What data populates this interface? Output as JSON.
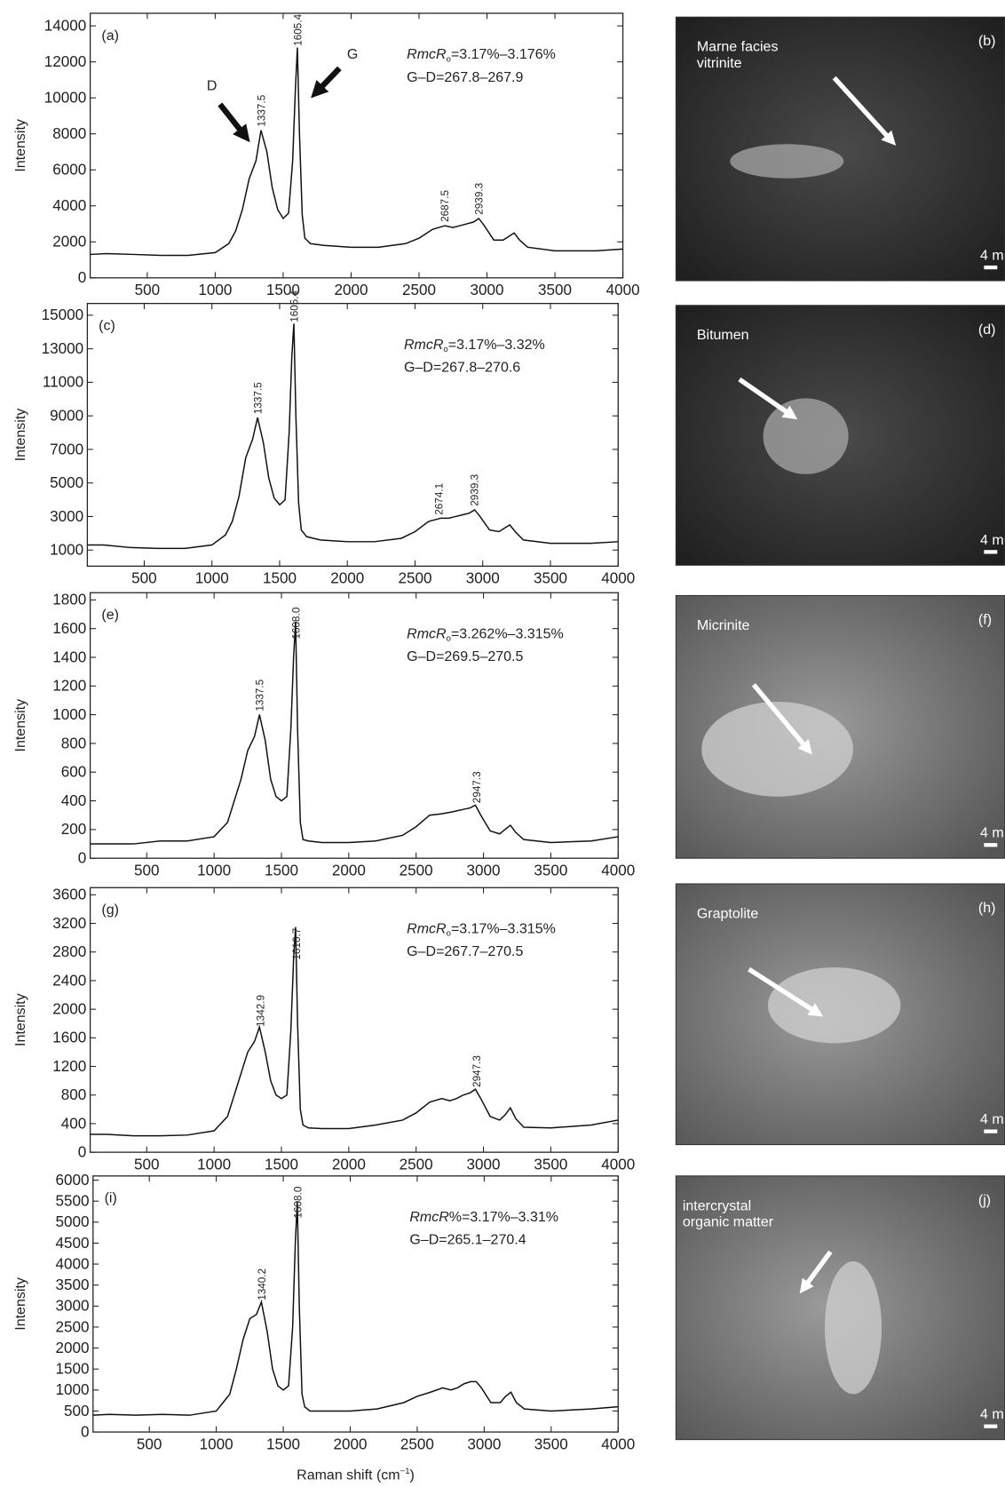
{
  "chart_data": [
    {
      "type": "line",
      "panel": "(a)",
      "ylabel": "Intensity",
      "color": "#111",
      "rmc": [
        "RmcR",
        "o",
        "=3.17%–3.176%"
      ],
      "gd": "G–D=267.8–267.9",
      "arrows": [
        "D",
        "G"
      ],
      "xlim": [
        80,
        4000
      ],
      "xticks": [
        500,
        1000,
        1500,
        2000,
        2500,
        3000,
        3500,
        4000
      ],
      "ylim": [
        0,
        14700
      ],
      "yticks": [
        0,
        2000,
        4000,
        6000,
        8000,
        10000,
        12000,
        14000
      ],
      "peaks": [
        1337.5,
        1605.4,
        2687.5,
        2939.3
      ],
      "x": [
        80,
        200,
        400,
        600,
        800,
        1000,
        1100,
        1150,
        1200,
        1250,
        1300,
        1337,
        1380,
        1420,
        1460,
        1500,
        1540,
        1570,
        1590,
        1605,
        1620,
        1640,
        1660,
        1700,
        1800,
        2000,
        2200,
        2400,
        2500,
        2600,
        2690,
        2750,
        2800,
        2850,
        2900,
        2940,
        2980,
        3050,
        3120,
        3160,
        3200,
        3240,
        3300,
        3500,
        3800,
        4000
      ],
      "values": [
        1300,
        1350,
        1300,
        1250,
        1250,
        1400,
        1900,
        2600,
        3800,
        5500,
        6500,
        8200,
        7000,
        5000,
        3800,
        3300,
        3600,
        6500,
        10500,
        12800,
        8000,
        3500,
        2200,
        1900,
        1800,
        1700,
        1700,
        1900,
        2200,
        2700,
        2900,
        2800,
        2900,
        3000,
        3100,
        3300,
        2900,
        2100,
        2100,
        2300,
        2500,
        2100,
        1700,
        1500,
        1500,
        1600
      ]
    },
    {
      "type": "line",
      "panel": "(c)",
      "ylabel": "Intensity",
      "color": "#111",
      "rmc": [
        "RmcR",
        "o",
        "=3.17%–3.32%"
      ],
      "gd": "G–D=267.8–270.6",
      "xlim": [
        80,
        4000
      ],
      "xticks": [
        500,
        1000,
        1500,
        2000,
        2500,
        3000,
        3500,
        4000
      ],
      "ylim": [
        40,
        15700
      ],
      "yticks": [
        1000,
        3000,
        5000,
        7000,
        9000,
        11000,
        13000,
        15000
      ],
      "peaks": [
        1337.5,
        1605.4,
        2674.1,
        2939.3
      ],
      "x": [
        80,
        200,
        400,
        600,
        800,
        1000,
        1100,
        1150,
        1200,
        1250,
        1300,
        1337,
        1380,
        1420,
        1460,
        1500,
        1540,
        1570,
        1590,
        1605,
        1620,
        1640,
        1660,
        1700,
        1800,
        2000,
        2200,
        2400,
        2500,
        2600,
        2690,
        2750,
        2800,
        2850,
        2900,
        2940,
        2980,
        3050,
        3120,
        3160,
        3200,
        3240,
        3300,
        3500,
        3800,
        4000
      ],
      "values": [
        1300,
        1300,
        1150,
        1100,
        1100,
        1300,
        1900,
        2700,
        4200,
        6500,
        7600,
        8900,
        7400,
        5300,
        4100,
        3700,
        4000,
        8000,
        12500,
        14500,
        9000,
        3800,
        2200,
        1800,
        1600,
        1500,
        1500,
        1700,
        2100,
        2700,
        2900,
        2900,
        3000,
        3100,
        3200,
        3400,
        3000,
        2200,
        2100,
        2300,
        2500,
        2100,
        1600,
        1400,
        1400,
        1500
      ]
    },
    {
      "type": "line",
      "panel": "(e)",
      "ylabel": "Intensity",
      "color": "#111",
      "rmc": [
        "RmcR",
        "o",
        "=3.262%–3.315%"
      ],
      "gd": "G–D=269.5–270.5",
      "xlim": [
        80,
        4000
      ],
      "xticks": [
        500,
        1000,
        1500,
        2000,
        2500,
        3000,
        3500,
        4000
      ],
      "ylim": [
        0,
        1850
      ],
      "yticks": [
        0,
        200,
        400,
        600,
        800,
        1000,
        1200,
        1400,
        1600,
        1800
      ],
      "peaks": [
        1337.5,
        {
          "value": 1608,
          "label": "1608.0"
        },
        2947.3
      ],
      "x": [
        80,
        200,
        400,
        600,
        800,
        1000,
        1100,
        1150,
        1200,
        1250,
        1300,
        1337,
        1380,
        1420,
        1460,
        1500,
        1540,
        1570,
        1590,
        1605,
        1620,
        1640,
        1660,
        1700,
        1800,
        2000,
        2200,
        2400,
        2500,
        2600,
        2690,
        2750,
        2800,
        2850,
        2900,
        2940,
        2980,
        3050,
        3120,
        3160,
        3200,
        3240,
        3300,
        3500,
        3800,
        4000
      ],
      "values": [
        100,
        100,
        100,
        120,
        120,
        150,
        250,
        400,
        550,
        750,
        850,
        1000,
        820,
        550,
        430,
        400,
        430,
        900,
        1400,
        1650,
        900,
        250,
        130,
        120,
        110,
        110,
        120,
        160,
        220,
        300,
        310,
        320,
        330,
        340,
        350,
        370,
        300,
        190,
        170,
        200,
        230,
        180,
        130,
        110,
        120,
        150
      ]
    },
    {
      "type": "line",
      "panel": "(g)",
      "ylabel": "Intensity",
      "color": "#111",
      "rmc": [
        "RmcR",
        "o",
        "=3.17%–3.315%"
      ],
      "gd": "G–D=267.7–270.5",
      "xlim": [
        80,
        4000
      ],
      "xticks": [
        500,
        1000,
        1500,
        2000,
        2500,
        3000,
        3500,
        4000
      ],
      "ylim": [
        0,
        3700
      ],
      "yticks": [
        0,
        400,
        800,
        1200,
        1600,
        2000,
        2400,
        2800,
        3200,
        3600
      ],
      "peaks": [
        1342.9,
        1610.7,
        2947.3
      ],
      "x": [
        80,
        200,
        400,
        600,
        800,
        1000,
        1100,
        1150,
        1200,
        1250,
        1300,
        1337,
        1380,
        1420,
        1460,
        1500,
        1540,
        1570,
        1590,
        1605,
        1620,
        1640,
        1660,
        1700,
        1800,
        2000,
        2200,
        2400,
        2500,
        2600,
        2690,
        2750,
        2800,
        2850,
        2900,
        2940,
        2980,
        3050,
        3120,
        3160,
        3200,
        3240,
        3300,
        3500,
        3800,
        4000
      ],
      "values": [
        250,
        250,
        230,
        230,
        240,
        300,
        500,
        800,
        1100,
        1400,
        1550,
        1750,
        1400,
        1000,
        800,
        750,
        800,
        1700,
        2700,
        3150,
        1800,
        600,
        380,
        340,
        330,
        330,
        380,
        450,
        550,
        700,
        750,
        720,
        750,
        800,
        830,
        880,
        750,
        500,
        450,
        520,
        620,
        470,
        350,
        340,
        380,
        450
      ]
    },
    {
      "type": "line",
      "panel": "(i)",
      "ylabel": "Intensity",
      "color": "#111",
      "rmc": [
        "RmcR",
        "",
        "%=3.17%–3.31%"
      ],
      "gd": "G–D=265.1–270.4",
      "xlabel": [
        "Raman shift (cm",
        "−1",
        ")"
      ],
      "xlim": [
        80,
        4000
      ],
      "xticks": [
        500,
        1000,
        1500,
        2000,
        2500,
        3000,
        3500,
        4000
      ],
      "ylim": [
        0,
        6100
      ],
      "yticks": [
        0,
        500,
        1000,
        1500,
        2000,
        2500,
        3000,
        3500,
        4000,
        4500,
        5000,
        5500,
        6000
      ],
      "peaks": [
        1340.2,
        {
          "value": 1608,
          "label": "1608.0"
        }
      ],
      "x": [
        80,
        200,
        400,
        600,
        800,
        1000,
        1100,
        1150,
        1200,
        1250,
        1300,
        1337,
        1380,
        1420,
        1460,
        1500,
        1540,
        1570,
        1590,
        1605,
        1620,
        1640,
        1660,
        1700,
        1800,
        2000,
        2200,
        2400,
        2500,
        2600,
        2690,
        2750,
        2800,
        2850,
        2900,
        2940,
        2980,
        3050,
        3120,
        3160,
        3200,
        3240,
        3300,
        3500,
        3800,
        4000
      ],
      "values": [
        400,
        420,
        400,
        420,
        400,
        500,
        900,
        1500,
        2200,
        2700,
        2800,
        3100,
        2400,
        1500,
        1100,
        1000,
        1100,
        2500,
        4500,
        5500,
        3000,
        900,
        600,
        500,
        500,
        500,
        550,
        700,
        850,
        950,
        1050,
        1000,
        1050,
        1150,
        1200,
        1200,
        1050,
        700,
        700,
        850,
        950,
        700,
        550,
        500,
        550,
        600
      ]
    }
  ],
  "images": [
    {
      "panel": "(b)",
      "lines": [
        "Marne facies",
        "vitrinite"
      ],
      "scale": "4 m"
    },
    {
      "panel": "(d)",
      "lines": [
        "Bitumen"
      ],
      "scale": "4 m"
    },
    {
      "panel": "(f)",
      "lines": [
        "Micrinite"
      ],
      "scale": "4 m"
    },
    {
      "panel": "(h)",
      "lines": [
        "Graptolite"
      ],
      "scale": "4 m"
    },
    {
      "panel": "(j)",
      "lines": [
        "intercrystal",
        "organic matter"
      ],
      "scale": "4 m"
    }
  ]
}
